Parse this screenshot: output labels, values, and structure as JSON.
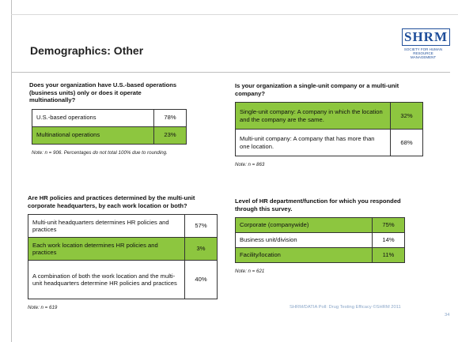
{
  "header": {
    "title": "Demographics: Other",
    "logo": "SHRM",
    "logo_sub": "Society for Human Resource Management"
  },
  "blocks": [
    {
      "question": "Does your organization have U.S.-based operations (business units) only or does it operate multinationally?",
      "rows": [
        {
          "label": "U.S.-based operations",
          "value": "78%",
          "highlight": false
        },
        {
          "label": "Multinational operations",
          "value": "23%",
          "highlight": true
        }
      ],
      "note": "Note: n = 906. Percentages do not total 100% due to rounding."
    },
    {
      "question": "Is your organization a single-unit company or a multi-unit company?",
      "rows": [
        {
          "label": "Single-unit company: A company in which the location and the company are the same.",
          "value": "32%",
          "highlight": true
        },
        {
          "label": "Multi-unit company: A company that has more than one location.",
          "value": "68%",
          "highlight": false
        }
      ],
      "note": "Note: n = 863"
    },
    {
      "question": "Are HR policies and practices determined by the multi-unit corporate headquarters, by each work location or both?",
      "rows": [
        {
          "label": "Multi-unit headquarters determines HR policies and practices",
          "value": "57%",
          "highlight": false
        },
        {
          "label": "Each work location determines HR policies and practices",
          "value": "3%",
          "highlight": true
        },
        {
          "label": "A combination of both the work location and the multi-unit headquarters determine HR policies and practices",
          "value": "40%",
          "highlight": false
        }
      ],
      "note": "Note: n = 619"
    },
    {
      "question": "Level of HR department/function for which you responded through this survey.",
      "rows": [
        {
          "label": "Corporate (companywide)",
          "value": "75%",
          "highlight": true
        },
        {
          "label": "Business unit/division",
          "value": "14%",
          "highlight": false
        },
        {
          "label": "Facility/location",
          "value": "11%",
          "highlight": true
        }
      ],
      "note": "Note: n = 621"
    }
  ],
  "footer": {
    "source": "SHRM/DATIA Poll: Drug Testing Efficacy ©SHRM 2011",
    "page": "34"
  }
}
